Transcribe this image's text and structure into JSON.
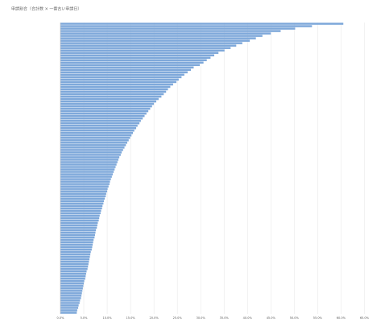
{
  "chart_data": {
    "type": "barh",
    "title": "申請割合（合計数 × 一番古い申請日）",
    "categories": [
      null,
      null,
      null,
      null,
      null,
      null,
      null,
      null,
      null,
      null,
      null,
      null,
      null,
      null,
      null,
      null,
      null,
      null,
      null,
      null,
      null,
      null,
      null,
      null,
      null,
      null,
      null,
      null,
      null,
      null,
      null,
      null,
      null,
      null,
      null,
      null,
      null,
      null,
      null,
      null,
      null,
      null,
      null,
      null,
      null,
      null,
      null,
      null,
      null,
      null,
      null,
      null,
      null,
      null,
      null,
      null,
      null,
      null,
      null,
      null,
      null,
      null,
      null,
      null,
      null,
      null,
      null,
      null,
      null,
      null,
      null,
      null,
      null,
      null,
      null,
      null,
      null,
      null,
      null,
      null,
      null,
      null,
      null,
      null,
      null,
      null,
      null,
      null,
      null,
      null,
      null,
      null,
      null,
      null,
      null,
      null,
      null,
      null,
      null,
      null,
      null,
      null,
      null,
      null,
      null,
      null,
      null,
      null,
      null,
      null,
      null,
      null,
      null,
      null,
      null,
      null,
      null,
      null,
      null,
      null
    ],
    "values": [
      60.5,
      53.8,
      50.2,
      47.1,
      45.0,
      43.2,
      41.8,
      40.5,
      38.9,
      37.6,
      36.4,
      35.1,
      33.8,
      32.9,
      32.1,
      31.3,
      30.6,
      29.8,
      28.5,
      27.9,
      27.2,
      26.5,
      25.9,
      25.3,
      24.8,
      24.1,
      23.5,
      23.0,
      22.6,
      22.1,
      21.6,
      21.0,
      20.5,
      20.0,
      19.6,
      19.2,
      18.8,
      18.4,
      18.0,
      17.6,
      17.2,
      16.9,
      16.5,
      16.2,
      15.8,
      15.5,
      15.2,
      14.9,
      14.6,
      14.3,
      14.0,
      13.7,
      13.4,
      13.1,
      12.9,
      12.6,
      12.4,
      12.2,
      12.0,
      11.8,
      11.6,
      11.4,
      11.2,
      11.0,
      10.8,
      10.6,
      10.5,
      10.3,
      10.1,
      10.0,
      9.8,
      9.7,
      9.5,
      9.3,
      9.2,
      9.0,
      8.9,
      8.7,
      8.6,
      8.4,
      8.3,
      8.2,
      8.0,
      7.9,
      7.8,
      7.6,
      7.5,
      7.4,
      7.3,
      7.1,
      7.0,
      6.9,
      6.8,
      6.7,
      6.5,
      6.4,
      6.3,
      6.2,
      6.1,
      6.0,
      5.9,
      5.8,
      5.6,
      5.5,
      5.4,
      5.3,
      5.1,
      5.0,
      4.9,
      4.8,
      4.7,
      4.6,
      4.5,
      4.4,
      4.2,
      4.1,
      3.9,
      3.8,
      3.6,
      3.5
    ],
    "color": "#7ea8da",
    "xlim": [
      0,
      67
    ],
    "xticks": [
      {
        "value": 0,
        "label": "0.0%"
      },
      {
        "value": 5,
        "label": "5.0%"
      },
      {
        "value": 10,
        "label": "10.0%"
      },
      {
        "value": 15,
        "label": "15.0%"
      },
      {
        "value": 20,
        "label": "20.0%"
      },
      {
        "value": 25,
        "label": "25.0%"
      },
      {
        "value": 30,
        "label": "30.0%"
      },
      {
        "value": 35,
        "label": "35.0%"
      },
      {
        "value": 40,
        "label": "40.0%"
      },
      {
        "value": 45,
        "label": "45.0%"
      },
      {
        "value": 50,
        "label": "50.0%"
      },
      {
        "value": 55,
        "label": "55.0%"
      },
      {
        "value": 60,
        "label": "60.0%"
      },
      {
        "value": 65,
        "label": "65.0%"
      }
    ],
    "grid": true
  }
}
